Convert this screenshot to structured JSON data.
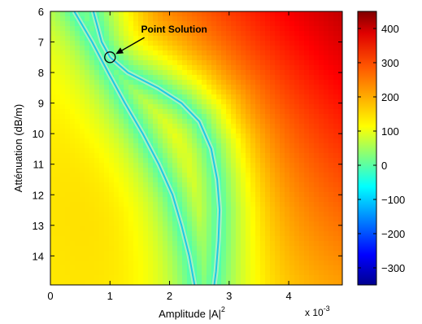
{
  "chart_data": {
    "type": "heatmap",
    "xlabel": "Amplitude |A|",
    "xlabel_superscript": "2",
    "x_multiplier": "x 10",
    "x_multiplier_exponent": "-3",
    "ylabel": "Atténuation (dB/m)",
    "xlim": [
      0,
      4.9
    ],
    "ylim": [
      6,
      14.95
    ],
    "y_reversed": true,
    "x_ticks": [
      0,
      1,
      2,
      3,
      4
    ],
    "x_tick_labels": [
      "0",
      "1",
      "2",
      "3",
      "4"
    ],
    "y_ticks": [
      6,
      7,
      8,
      9,
      10,
      11,
      12,
      13,
      14
    ],
    "y_tick_labels": [
      "6",
      "7",
      "8",
      "9",
      "10",
      "11",
      "12",
      "13",
      "14"
    ],
    "colorbar": {
      "range": [
        -350,
        450
      ],
      "colormap": "jet",
      "ticks": [
        400,
        300,
        200,
        100,
        0,
        -100,
        -200,
        -300
      ],
      "tick_labels": [
        "400",
        "300",
        "200",
        "100",
        "0",
        "−100",
        "−200",
        "−300"
      ]
    },
    "curves": [
      {
        "points": [
          [
            0.4,
            6.0
          ],
          [
            0.7,
            7.0
          ],
          [
            0.97,
            8.0
          ],
          [
            1.25,
            9.0
          ],
          [
            1.55,
            10.0
          ],
          [
            1.82,
            11.0
          ],
          [
            2.05,
            12.0
          ],
          [
            2.2,
            13.0
          ],
          [
            2.33,
            14.0
          ],
          [
            2.42,
            14.95
          ]
        ]
      },
      {
        "points": [
          [
            0.72,
            6.0
          ],
          [
            0.86,
            7.0
          ],
          [
            1.0,
            7.5
          ],
          [
            1.3,
            8.0
          ],
          [
            1.8,
            8.5
          ],
          [
            2.2,
            9.0
          ],
          [
            2.5,
            9.6
          ],
          [
            2.7,
            10.5
          ],
          [
            2.8,
            11.5
          ],
          [
            2.84,
            12.5
          ],
          [
            2.82,
            13.5
          ],
          [
            2.78,
            14.5
          ],
          [
            2.75,
            14.95
          ]
        ]
      }
    ],
    "annotation": {
      "text": "Point Solution",
      "point": [
        1.0,
        7.5
      ],
      "text_pos": [
        1.55,
        6.75
      ]
    }
  }
}
